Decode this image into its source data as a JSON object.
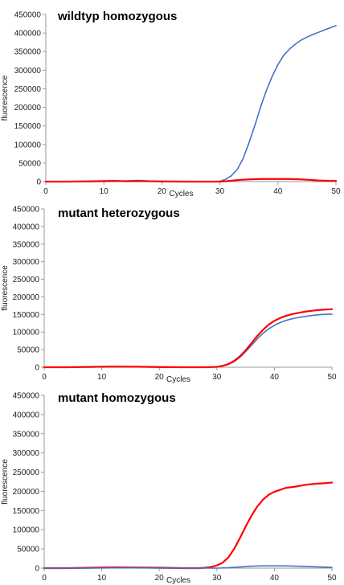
{
  "chart_data": [
    {
      "type": "line",
      "title": "wildtyp homozygous",
      "xlabel": "Cycles",
      "ylabel": "fluorescence",
      "xlim": [
        0,
        50
      ],
      "ylim": [
        0,
        450000
      ],
      "xticks": [
        "0",
        "10",
        "20",
        "30",
        "40",
        "50"
      ],
      "yticks": [
        "0",
        "50000",
        "100000",
        "150000",
        "200000",
        "250000",
        "300000",
        "350000",
        "400000",
        "450000"
      ],
      "grid": false,
      "x": [
        0,
        4,
        8,
        12,
        14,
        16,
        18,
        20,
        24,
        28,
        30,
        31,
        32,
        33,
        34,
        35,
        36,
        37,
        38,
        39,
        40,
        41,
        42,
        43,
        44,
        45,
        46,
        47,
        48,
        49,
        50
      ],
      "series": [
        {
          "color": "#4472c4",
          "values": [
            0,
            0,
            0,
            1000,
            2000,
            3000,
            1500,
            0,
            0,
            0,
            1000,
            6000,
            16000,
            33000,
            62000,
            104000,
            150000,
            200000,
            245000,
            283000,
            315000,
            340000,
            357000,
            370000,
            381000,
            389000,
            396000,
            402000,
            408000,
            414000,
            420000
          ]
        },
        {
          "color": "#ff0000",
          "values": [
            0,
            0,
            1000,
            2000,
            1000,
            1500,
            1000,
            500,
            0,
            0,
            0,
            1000,
            2500,
            4000,
            5000,
            6000,
            6500,
            7000,
            7000,
            7000,
            7000,
            7000,
            7000,
            6500,
            6000,
            5000,
            4000,
            3000,
            2500,
            2000,
            2000
          ]
        }
      ]
    },
    {
      "type": "line",
      "title": "mutant heterozygous",
      "xlabel": "Cycles",
      "ylabel": "fluorescence",
      "xlim": [
        0,
        50
      ],
      "ylim": [
        0,
        450000
      ],
      "xticks": [
        "0",
        "10",
        "20",
        "30",
        "40",
        "50"
      ],
      "yticks": [
        "0",
        "50000",
        "100000",
        "150000",
        "200000",
        "250000",
        "300000",
        "350000",
        "400000",
        "450000"
      ],
      "grid": false,
      "x": [
        0,
        4,
        8,
        12,
        16,
        20,
        24,
        28,
        30,
        31,
        32,
        33,
        34,
        35,
        36,
        37,
        38,
        39,
        40,
        41,
        42,
        43,
        44,
        45,
        46,
        47,
        48,
        49,
        50
      ],
      "series": [
        {
          "color": "#4472c4",
          "values": [
            0,
            0,
            0,
            1000,
            1000,
            0,
            0,
            0,
            1000,
            3500,
            8000,
            16000,
            28000,
            44000,
            62000,
            80000,
            96000,
            109000,
            119000,
            127000,
            133000,
            137500,
            141000,
            143500,
            146000,
            148000,
            149500,
            150500,
            151000
          ]
        },
        {
          "color": "#ff0000",
          "values": [
            0,
            0,
            1000,
            2000,
            1500,
            500,
            0,
            0,
            1000,
            4000,
            9000,
            18000,
            31000,
            48000,
            68000,
            88000,
            106000,
            121000,
            132000,
            140000,
            146000,
            150500,
            154000,
            157000,
            159500,
            161500,
            163000,
            164000,
            165000
          ]
        }
      ]
    },
    {
      "type": "line",
      "title": "mutant homozygous",
      "xlabel": "Cycles",
      "ylabel": "fluorescence",
      "xlim": [
        0,
        50
      ],
      "ylim": [
        0,
        450000
      ],
      "xticks": [
        "0",
        "10",
        "20",
        "30",
        "40",
        "50"
      ],
      "yticks": [
        "0",
        "50000",
        "100000",
        "150000",
        "200000",
        "250000",
        "300000",
        "350000",
        "400000",
        "450000"
      ],
      "grid": false,
      "x": [
        0,
        4,
        8,
        12,
        16,
        20,
        24,
        27,
        28,
        29,
        30,
        31,
        32,
        33,
        34,
        35,
        36,
        37,
        38,
        39,
        40,
        41,
        42,
        43,
        44,
        45,
        46,
        47,
        48,
        49,
        50
      ],
      "series": [
        {
          "color": "#ff0000",
          "values": [
            0,
            0,
            1000,
            2000,
            1500,
            1000,
            0,
            0,
            1000,
            3000,
            7000,
            14000,
            28000,
            50000,
            78000,
            108000,
            136000,
            160000,
            178000,
            191000,
            199000,
            204000,
            209000,
            211000,
            213000,
            216000,
            218000,
            219500,
            220500,
            221500,
            223000
          ]
        },
        {
          "color": "#4472c4",
          "values": [
            0,
            0,
            0,
            500,
            500,
            0,
            0,
            0,
            0,
            0,
            0,
            500,
            1000,
            2000,
            3000,
            4000,
            5000,
            5500,
            6000,
            6000,
            6000,
            6000,
            6000,
            5500,
            5000,
            4500,
            4000,
            3500,
            3000,
            2500,
            2000
          ]
        }
      ]
    }
  ]
}
